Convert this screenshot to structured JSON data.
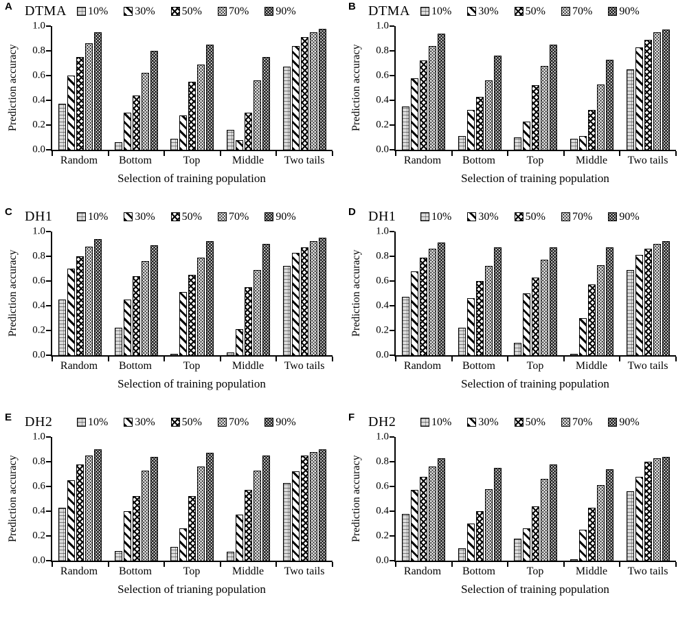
{
  "figure": {
    "legend_labels": [
      "10%",
      "30%",
      "50%",
      "70%",
      "90%"
    ],
    "pattern_names": {
      "10%": "light-gray-grid",
      "30%": "black-diagonal-stripes",
      "50%": "diamond-crosshatch",
      "70%": "light-dot-checker",
      "90%": "dark-dot-checker"
    },
    "colors": {
      "foreground": "#000000",
      "background": "#ffffff",
      "bar_light_gray": "#dcdcdc",
      "bar_dark": "#141414"
    }
  },
  "chart_data": [
    {
      "type": "bar",
      "panel_label": "A",
      "title": "DTMA",
      "xlabel": "Selection of training population",
      "ylabel": "Prediction accuracy",
      "ylim": [
        0.0,
        1.0
      ],
      "yticks": [
        0.0,
        0.2,
        0.4,
        0.6,
        0.8,
        1.0
      ],
      "ytick_labels": [
        "0.0",
        "0.2",
        "0.4",
        "0.6",
        "0.8",
        "1.0"
      ],
      "legend_position": "top",
      "grid": false,
      "categories": [
        "Random",
        "Bottom",
        "Top",
        "Middle",
        "Two tails"
      ],
      "series": [
        {
          "name": "10%",
          "values": [
            0.37,
            0.06,
            0.09,
            0.16,
            0.67
          ]
        },
        {
          "name": "30%",
          "values": [
            0.6,
            0.3,
            0.28,
            0.08,
            0.84
          ]
        },
        {
          "name": "50%",
          "values": [
            0.75,
            0.44,
            0.55,
            0.3,
            0.91
          ]
        },
        {
          "name": "70%",
          "values": [
            0.86,
            0.62,
            0.69,
            0.56,
            0.95
          ]
        },
        {
          "name": "90%",
          "values": [
            0.95,
            0.8,
            0.85,
            0.75,
            0.98
          ]
        }
      ]
    },
    {
      "type": "bar",
      "panel_label": "B",
      "title": "DTMA",
      "xlabel": "Selection of training population",
      "ylabel": "Prediction accuracy",
      "ylim": [
        0.0,
        1.0
      ],
      "yticks": [
        0.0,
        0.2,
        0.4,
        0.6,
        0.8,
        1.0
      ],
      "ytick_labels": [
        "0.0",
        "0.2",
        "0.4",
        "0.6",
        "0.8",
        "1.0"
      ],
      "legend_position": "top",
      "grid": false,
      "categories": [
        "Random",
        "Bottom",
        "Top",
        "Middle",
        "Two tails"
      ],
      "series": [
        {
          "name": "10%",
          "values": [
            0.35,
            0.11,
            0.1,
            0.09,
            0.65
          ]
        },
        {
          "name": "30%",
          "values": [
            0.58,
            0.32,
            0.23,
            0.11,
            0.83
          ]
        },
        {
          "name": "50%",
          "values": [
            0.72,
            0.43,
            0.52,
            0.32,
            0.89
          ]
        },
        {
          "name": "70%",
          "values": [
            0.84,
            0.56,
            0.68,
            0.53,
            0.95
          ]
        },
        {
          "name": "90%",
          "values": [
            0.94,
            0.76,
            0.85,
            0.73,
            0.97
          ]
        }
      ]
    },
    {
      "type": "bar",
      "panel_label": "C",
      "title": "DH1",
      "xlabel": "Selection of training population",
      "ylabel": "Prediction accuracy",
      "ylim": [
        0.0,
        1.0
      ],
      "yticks": [
        0.0,
        0.2,
        0.4,
        0.6,
        0.8,
        1.0
      ],
      "ytick_labels": [
        "0.0",
        "0.2",
        "0.4",
        "0.6",
        "0.8",
        "1.0"
      ],
      "legend_position": "top",
      "grid": false,
      "categories": [
        "Random",
        "Bottom",
        "Top",
        "Middle",
        "Two tails"
      ],
      "series": [
        {
          "name": "10%",
          "values": [
            0.45,
            0.22,
            0.01,
            0.02,
            0.72
          ]
        },
        {
          "name": "30%",
          "values": [
            0.7,
            0.45,
            0.51,
            0.21,
            0.83
          ]
        },
        {
          "name": "50%",
          "values": [
            0.8,
            0.64,
            0.65,
            0.55,
            0.87
          ]
        },
        {
          "name": "70%",
          "values": [
            0.88,
            0.76,
            0.79,
            0.69,
            0.92
          ]
        },
        {
          "name": "90%",
          "values": [
            0.94,
            0.89,
            0.92,
            0.9,
            0.95
          ]
        }
      ]
    },
    {
      "type": "bar",
      "panel_label": "D",
      "title": "DH1",
      "xlabel": "Selection of training population",
      "ylabel": "Prediction accuracy",
      "ylim": [
        0.0,
        1.0
      ],
      "yticks": [
        0.0,
        0.2,
        0.4,
        0.6,
        0.8,
        1.0
      ],
      "ytick_labels": [
        "0.0",
        "0.2",
        "0.4",
        "0.6",
        "0.8",
        "1.0"
      ],
      "legend_position": "top",
      "grid": false,
      "categories": [
        "Random",
        "Bottom",
        "Top",
        "Middle",
        "Two tails"
      ],
      "series": [
        {
          "name": "10%",
          "values": [
            0.47,
            0.22,
            0.1,
            0.01,
            0.69
          ]
        },
        {
          "name": "30%",
          "values": [
            0.68,
            0.46,
            0.5,
            0.3,
            0.81
          ]
        },
        {
          "name": "50%",
          "values": [
            0.79,
            0.6,
            0.63,
            0.57,
            0.86
          ]
        },
        {
          "name": "70%",
          "values": [
            0.86,
            0.72,
            0.77,
            0.73,
            0.9
          ]
        },
        {
          "name": "90%",
          "values": [
            0.91,
            0.87,
            0.87,
            0.87,
            0.92
          ]
        }
      ]
    },
    {
      "type": "bar",
      "panel_label": "E",
      "title": "DH2",
      "xlabel": "Selection of trianing population",
      "ylabel": "Prediction accuracy",
      "ylim": [
        0.0,
        1.0
      ],
      "yticks": [
        0.0,
        0.2,
        0.4,
        0.6,
        0.8,
        1.0
      ],
      "ytick_labels": [
        "0.0",
        "0.2",
        "0.4",
        "0.6",
        "0.8",
        "1.0"
      ],
      "legend_position": "top",
      "grid": false,
      "categories": [
        "Random",
        "Bottom",
        "Top",
        "Middle",
        "Two tails"
      ],
      "series": [
        {
          "name": "10%",
          "values": [
            0.43,
            0.08,
            0.11,
            0.07,
            0.63
          ]
        },
        {
          "name": "30%",
          "values": [
            0.65,
            0.4,
            0.26,
            0.37,
            0.72
          ]
        },
        {
          "name": "50%",
          "values": [
            0.78,
            0.52,
            0.52,
            0.57,
            0.85
          ]
        },
        {
          "name": "70%",
          "values": [
            0.85,
            0.73,
            0.76,
            0.73,
            0.88
          ]
        },
        {
          "name": "90%",
          "values": [
            0.9,
            0.84,
            0.87,
            0.85,
            0.9
          ]
        }
      ]
    },
    {
      "type": "bar",
      "panel_label": "F",
      "title": "DH2",
      "xlabel": "Selection of training population",
      "ylabel": "Prediction accuracy",
      "ylim": [
        0.0,
        1.0
      ],
      "yticks": [
        0.0,
        0.2,
        0.4,
        0.6,
        0.8,
        1.0
      ],
      "ytick_labels": [
        "0.0",
        "0.2",
        "0.4",
        "0.6",
        "0.8",
        "1.0"
      ],
      "legend_position": "top",
      "grid": false,
      "categories": [
        "Random",
        "Bottom",
        "Top",
        "Middle",
        "Two tails"
      ],
      "series": [
        {
          "name": "10%",
          "values": [
            0.38,
            0.1,
            0.18,
            0.01,
            0.56
          ]
        },
        {
          "name": "30%",
          "values": [
            0.57,
            0.3,
            0.26,
            0.25,
            0.68
          ]
        },
        {
          "name": "50%",
          "values": [
            0.68,
            0.4,
            0.44,
            0.43,
            0.8
          ]
        },
        {
          "name": "70%",
          "values": [
            0.76,
            0.58,
            0.66,
            0.61,
            0.83
          ]
        },
        {
          "name": "90%",
          "values": [
            0.83,
            0.75,
            0.78,
            0.74,
            0.84
          ]
        }
      ]
    }
  ]
}
